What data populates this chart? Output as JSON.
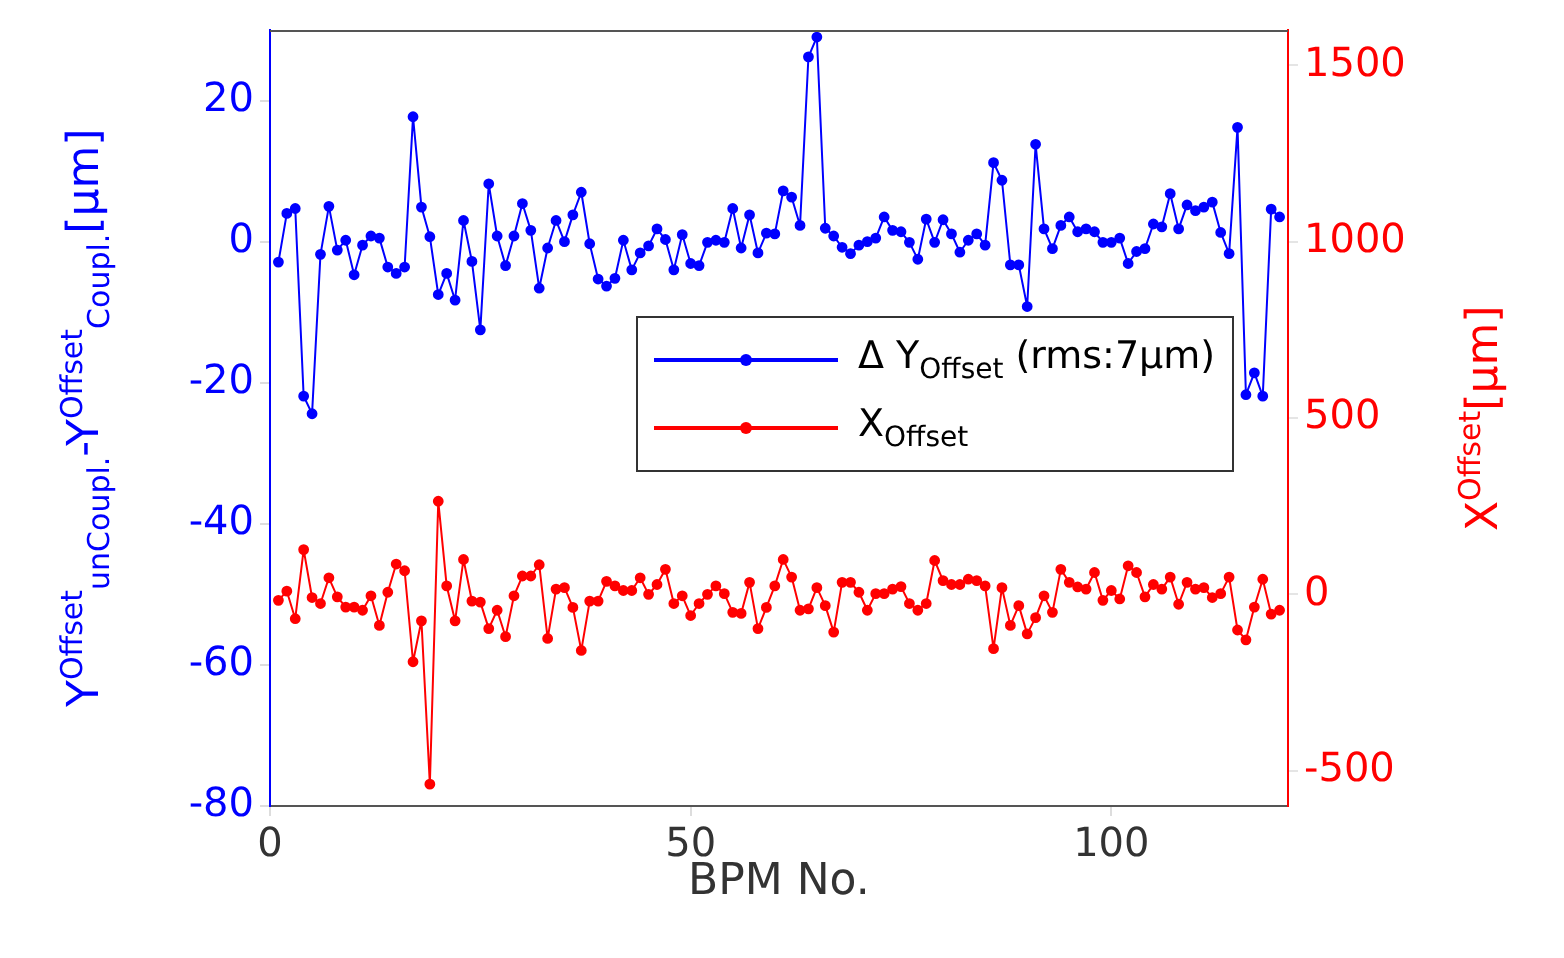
{
  "chart_data": {
    "type": "line",
    "xlabel": "BPM No.",
    "ylabel": "Y$^{Offset}$$_{unCoupl.}$-Y$^{Offset}$$_{Coupl.}$[μm]",
    "y2label": "X$^{Offset}$[μm]",
    "x": [
      1,
      2,
      3,
      4,
      5,
      6,
      7,
      8,
      9,
      10,
      11,
      12,
      13,
      14,
      15,
      16,
      17,
      18,
      19,
      20,
      21,
      22,
      23,
      24,
      25,
      26,
      27,
      28,
      29,
      30,
      31,
      32,
      33,
      34,
      35,
      36,
      37,
      38,
      39,
      40,
      41,
      42,
      43,
      44,
      45,
      46,
      47,
      48,
      49,
      50,
      51,
      52,
      53,
      54,
      55,
      56,
      57,
      58,
      59,
      60,
      61,
      62,
      63,
      64,
      65,
      66,
      67,
      68,
      69,
      70,
      71,
      72,
      73,
      74,
      75,
      76,
      77,
      78,
      79,
      80,
      81,
      82,
      83,
      84,
      85,
      86,
      87,
      88,
      89,
      90,
      91,
      92,
      93,
      94,
      95,
      96,
      97,
      98,
      99,
      100,
      101,
      102,
      103,
      104,
      105,
      106,
      107,
      108,
      109,
      110,
      111,
      112,
      113,
      114,
      115,
      116,
      117,
      118,
      119,
      120
    ],
    "xlim": [
      0,
      121
    ],
    "xticks": [
      0,
      50,
      100
    ],
    "ylim": [
      -80,
      30
    ],
    "yticks": [
      -80,
      -60,
      -40,
      -20,
      0,
      20
    ],
    "y2lim": [
      -600,
      1600
    ],
    "y2ticks": [
      -500,
      0,
      500,
      1000,
      1500
    ],
    "grid": false,
    "legend": "right",
    "marker": "circle",
    "line_style": "solid",
    "series": [
      {
        "name": "Δ Y$_{Offset}$ (rms:7μm)",
        "color": "#0000ff",
        "values": [
          -2.9,
          4,
          4.7,
          -21.9,
          -24.4,
          -1.8,
          5,
          -1.2,
          0.2,
          -4.7,
          -0.5,
          0.8,
          0.5,
          -3.6,
          -4.5,
          -3.6,
          17.7,
          4.9,
          0.7,
          -7.5,
          -4.5,
          -8.3,
          3,
          -2.8,
          -12.5,
          8.2,
          0.8,
          -3.4,
          0.8,
          5.4,
          1.6,
          -6.6,
          -0.9,
          3,
          0,
          3.8,
          7,
          -0.3,
          -5.3,
          -6.3,
          -5.2,
          0.2,
          -4,
          -1.6,
          -0.6,
          1.8,
          0.3,
          -4,
          1,
          -3.1,
          -3.4,
          -0.1,
          0.2,
          -0.1,
          4.7,
          -0.9,
          3.8,
          -1.6,
          1.2,
          1.1,
          7.2,
          6.3,
          2.3,
          26.2,
          29,
          1.9,
          0.8,
          -0.8,
          -1.7,
          -0.5,
          0,
          0.5,
          3.5,
          1.6,
          1.4,
          -0.1,
          -2.5,
          3.2,
          -0.1,
          3.1,
          1.1,
          -1.5,
          0.2,
          1.1,
          -0.5,
          11.2,
          8.7,
          -3.3,
          -3.3,
          -9.2,
          13.8,
          1.8,
          -1,
          2.3,
          3.5,
          1.4,
          1.8,
          1.4,
          -0.1,
          -0.1,
          0.5,
          -3.1,
          -1.4,
          -1,
          2.5,
          2.1,
          6.8,
          1.8,
          5.2,
          4.4,
          4.9,
          5.6,
          1.3,
          -1.7,
          16.2,
          -21.7,
          -18.6,
          -21.9,
          4.6,
          3.5
        ]
      },
      {
        "name": "X$_{Offset}$",
        "color": "#ff0000",
        "axis": "y2",
        "values": [
          -17,
          9,
          -69,
          127,
          -9,
          -26,
          47,
          -7,
          -36,
          -36,
          -45,
          -4,
          -88,
          6,
          86,
          67,
          -191,
          -75,
          -538,
          264,
          24,
          -75,
          99,
          -19,
          -22,
          -97,
          -45,
          -120,
          -4,
          52,
          52,
          84,
          -125,
          15,
          19,
          -37,
          -159,
          -19,
          -19,
          37,
          24,
          11,
          11,
          47,
          0,
          28,
          71,
          -26,
          -4,
          -60,
          -26,
          0,
          24,
          2,
          -51,
          -54,
          34,
          -97,
          -37,
          24,
          99,
          49,
          -45,
          -41,
          19,
          -32,
          -107,
          34,
          34,
          6,
          -45,
          2,
          2,
          15,
          22,
          -26,
          -45,
          -26,
          96,
          39,
          28,
          28,
          43,
          39,
          24,
          -154,
          19,
          -88,
          -32,
          -112,
          -66,
          -4,
          -51,
          71,
          34,
          21,
          15,
          62,
          -17,
          11,
          -13,
          81,
          62,
          -7,
          28,
          15,
          49,
          -28,
          34,
          15,
          19,
          -9,
          2,
          49,
          -101,
          -129,
          -36,
          43,
          -56,
          -45
        ]
      }
    ]
  }
}
